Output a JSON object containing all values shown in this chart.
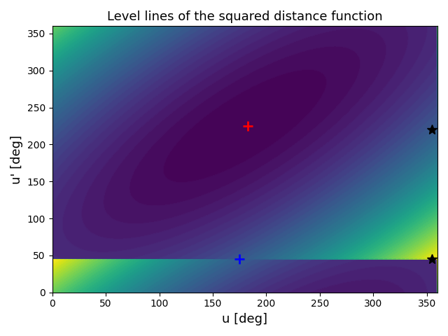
{
  "title": "Level lines of the squared distance function",
  "xlabel": "u [deg]",
  "ylabel": "u' [deg]",
  "u0": 180,
  "v0": 225,
  "u_star": 355,
  "v_star1": 220,
  "v_star2": 45,
  "u_plus_blue": 175,
  "v_plus_blue": 45,
  "u_plus_red": 183,
  "v_plus_red": 225,
  "xlim": [
    0,
    360
  ],
  "ylim": [
    0,
    360
  ],
  "yticks": [
    0,
    50,
    100,
    150,
    200,
    250,
    300,
    350
  ],
  "xticks": [
    0,
    50,
    100,
    150,
    200,
    250,
    300,
    350
  ],
  "n_levels": 50,
  "colormap": "viridis",
  "a": 0.25,
  "b": 2.0,
  "figsize": [
    6.4,
    4.8
  ],
  "dpi": 100
}
